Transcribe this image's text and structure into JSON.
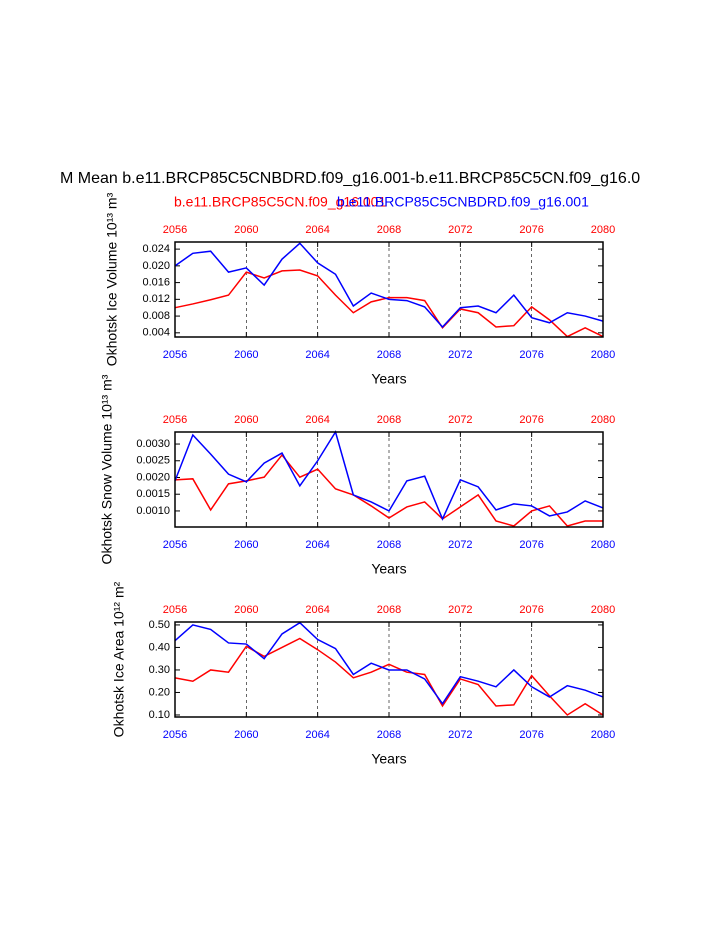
{
  "chart_data": [
    {
      "type": "line",
      "title": "M Mean b.e11.BRCP85C5CNBDRD.f09_g16.001-b.e11.BRCP85C5CN.f09_g16.0",
      "ylabel": "Okhotsk Ice Volume 10¹³ m³",
      "xlabel": "Years",
      "x": [
        2056,
        2057,
        2058,
        2059,
        2060,
        2061,
        2062,
        2063,
        2064,
        2065,
        2066,
        2067,
        2068,
        2069,
        2070,
        2071,
        2072,
        2073,
        2074,
        2075,
        2076,
        2077,
        2078,
        2079,
        2080
      ],
      "xlim": [
        2056,
        2080
      ],
      "xticks": [
        2056,
        2060,
        2064,
        2068,
        2072,
        2076,
        2080
      ],
      "ylim": [
        0.003,
        0.0257
      ],
      "yticks": [
        {
          "value": 0.004,
          "label": "0.004"
        },
        {
          "value": 0.008,
          "label": "0.008"
        },
        {
          "value": 0.012,
          "label": "0.012"
        },
        {
          "value": 0.016,
          "label": "0.016"
        },
        {
          "value": 0.02,
          "label": "0.020"
        },
        {
          "value": 0.024,
          "label": "0.024"
        }
      ],
      "xgrid": true,
      "series": [
        {
          "name": "b.e11.BRCP85C5CN.f09_g16.001",
          "color": "#ff0000",
          "values": [
            0.01,
            0.0109,
            0.0119,
            0.013,
            0.0185,
            0.0171,
            0.0188,
            0.019,
            0.0176,
            0.013,
            0.0088,
            0.0114,
            0.0124,
            0.0124,
            0.0117,
            0.0052,
            0.0097,
            0.0088,
            0.0054,
            0.0057,
            0.0102,
            0.0071,
            0.0031,
            0.0052,
            0.0031
          ]
        },
        {
          "name": "b.e11.BRCP85C5CNBDRD.f09_g16.001",
          "color": "#0000ff",
          "values": [
            0.02,
            0.023,
            0.0235,
            0.0185,
            0.0195,
            0.0154,
            0.0216,
            0.0254,
            0.0207,
            0.018,
            0.0104,
            0.0135,
            0.012,
            0.0117,
            0.0102,
            0.0054,
            0.01,
            0.0104,
            0.0088,
            0.013,
            0.0076,
            0.0064,
            0.0088,
            0.008,
            0.0068
          ]
        }
      ]
    },
    {
      "type": "line",
      "ylabel": "Okhotsk Snow Volume 10¹³ m³",
      "xlabel": "Years",
      "x": [
        2056,
        2057,
        2058,
        2059,
        2060,
        2061,
        2062,
        2063,
        2064,
        2065,
        2066,
        2067,
        2068,
        2069,
        2070,
        2071,
        2072,
        2073,
        2074,
        2075,
        2076,
        2077,
        2078,
        2079,
        2080
      ],
      "xlim": [
        2056,
        2080
      ],
      "xticks": [
        2056,
        2060,
        2064,
        2068,
        2072,
        2076,
        2080
      ],
      "ylim": [
        0.00052,
        0.00336
      ],
      "yticks": [
        {
          "value": 0.001,
          "label": "0.0010"
        },
        {
          "value": 0.0015,
          "label": "0.0015"
        },
        {
          "value": 0.002,
          "label": "0.0020"
        },
        {
          "value": 0.0025,
          "label": "0.0025"
        },
        {
          "value": 0.003,
          "label": "0.0030"
        }
      ],
      "xgrid": true,
      "series": [
        {
          "color": "#ff0000",
          "values": [
            0.00193,
            0.00196,
            0.00103,
            0.00181,
            0.0019,
            0.00201,
            0.00267,
            0.00201,
            0.00225,
            0.00166,
            0.00148,
            0.00115,
            0.00079,
            0.00112,
            0.00127,
            0.00076,
            0.00112,
            0.00148,
            0.0007,
            0.00055,
            0.001,
            0.00115,
            0.00055,
            0.0007,
            0.0007
          ]
        },
        {
          "color": "#0000ff",
          "values": [
            0.0019,
            0.00327,
            0.0027,
            0.0021,
            0.00187,
            0.00243,
            0.00273,
            0.00175,
            0.0025,
            0.00336,
            0.00148,
            0.00127,
            0.001,
            0.0019,
            0.00204,
            0.00076,
            0.00193,
            0.00172,
            0.00103,
            0.00121,
            0.00115,
            0.00085,
            0.00097,
            0.0013,
            0.00109
          ]
        }
      ]
    },
    {
      "type": "line",
      "ylabel": "Okhotsk Ice Area 10¹² m²",
      "xlabel": "Years",
      "x": [
        2056,
        2057,
        2058,
        2059,
        2060,
        2061,
        2062,
        2063,
        2064,
        2065,
        2066,
        2067,
        2068,
        2069,
        2070,
        2071,
        2072,
        2073,
        2074,
        2075,
        2076,
        2077,
        2078,
        2079,
        2080
      ],
      "xlim": [
        2056,
        2080
      ],
      "xticks": [
        2056,
        2060,
        2064,
        2068,
        2072,
        2076,
        2080
      ],
      "ylim": [
        0.091,
        0.513
      ],
      "yticks": [
        {
          "value": 0.1,
          "label": "0.10"
        },
        {
          "value": 0.2,
          "label": "0.20"
        },
        {
          "value": 0.3,
          "label": "0.30"
        },
        {
          "value": 0.4,
          "label": "0.40"
        },
        {
          "value": 0.5,
          "label": "0.50"
        }
      ],
      "xgrid": true,
      "series": [
        {
          "color": "#ff0000",
          "values": [
            0.265,
            0.25,
            0.3,
            0.29,
            0.405,
            0.36,
            0.4,
            0.44,
            0.39,
            0.335,
            0.265,
            0.29,
            0.325,
            0.29,
            0.28,
            0.14,
            0.26,
            0.235,
            0.14,
            0.145,
            0.275,
            0.185,
            0.1,
            0.15,
            0.1
          ]
        },
        {
          "color": "#0000ff",
          "values": [
            0.43,
            0.5,
            0.48,
            0.42,
            0.415,
            0.35,
            0.46,
            0.51,
            0.435,
            0.395,
            0.28,
            0.33,
            0.3,
            0.3,
            0.26,
            0.15,
            0.27,
            0.25,
            0.225,
            0.3,
            0.225,
            0.18,
            0.23,
            0.21,
            0.18
          ]
        }
      ]
    }
  ]
}
